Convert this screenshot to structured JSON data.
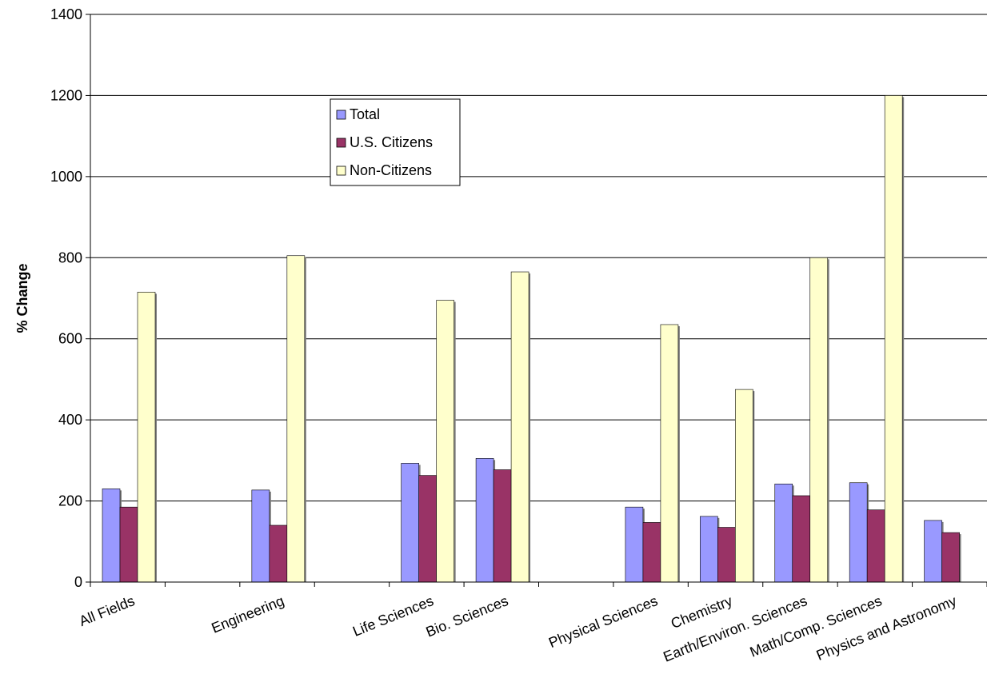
{
  "chart_data": {
    "type": "bar",
    "title": "",
    "xlabel": "",
    "ylabel": "% Change",
    "ylim": [
      0,
      1400
    ],
    "yticks": [
      0,
      200,
      400,
      600,
      800,
      1000,
      1200,
      1400
    ],
    "grid": true,
    "legend_position": "top-center",
    "categories": [
      "All Fields",
      "",
      "Engineering",
      "",
      "Life Sciences",
      "Bio. Sciences",
      "",
      "Physical Sciences",
      "Chemistry",
      "Earth/Environ. Sciences",
      "Math/Comp. Sciences",
      "Physics and Astronomy"
    ],
    "series": [
      {
        "name": "Total",
        "color": "#9999ff",
        "values": [
          230,
          null,
          227,
          null,
          293,
          305,
          null,
          185,
          162,
          242,
          245,
          152
        ]
      },
      {
        "name": "U.S. Citizens",
        "color": "#993366",
        "values": [
          185,
          null,
          140,
          null,
          263,
          277,
          null,
          147,
          135,
          213,
          178,
          122
        ]
      },
      {
        "name": "Non-Citizens",
        "color": "#ffffcc",
        "values": [
          715,
          null,
          805,
          null,
          695,
          765,
          null,
          635,
          475,
          800,
          1200,
          null
        ]
      }
    ]
  }
}
